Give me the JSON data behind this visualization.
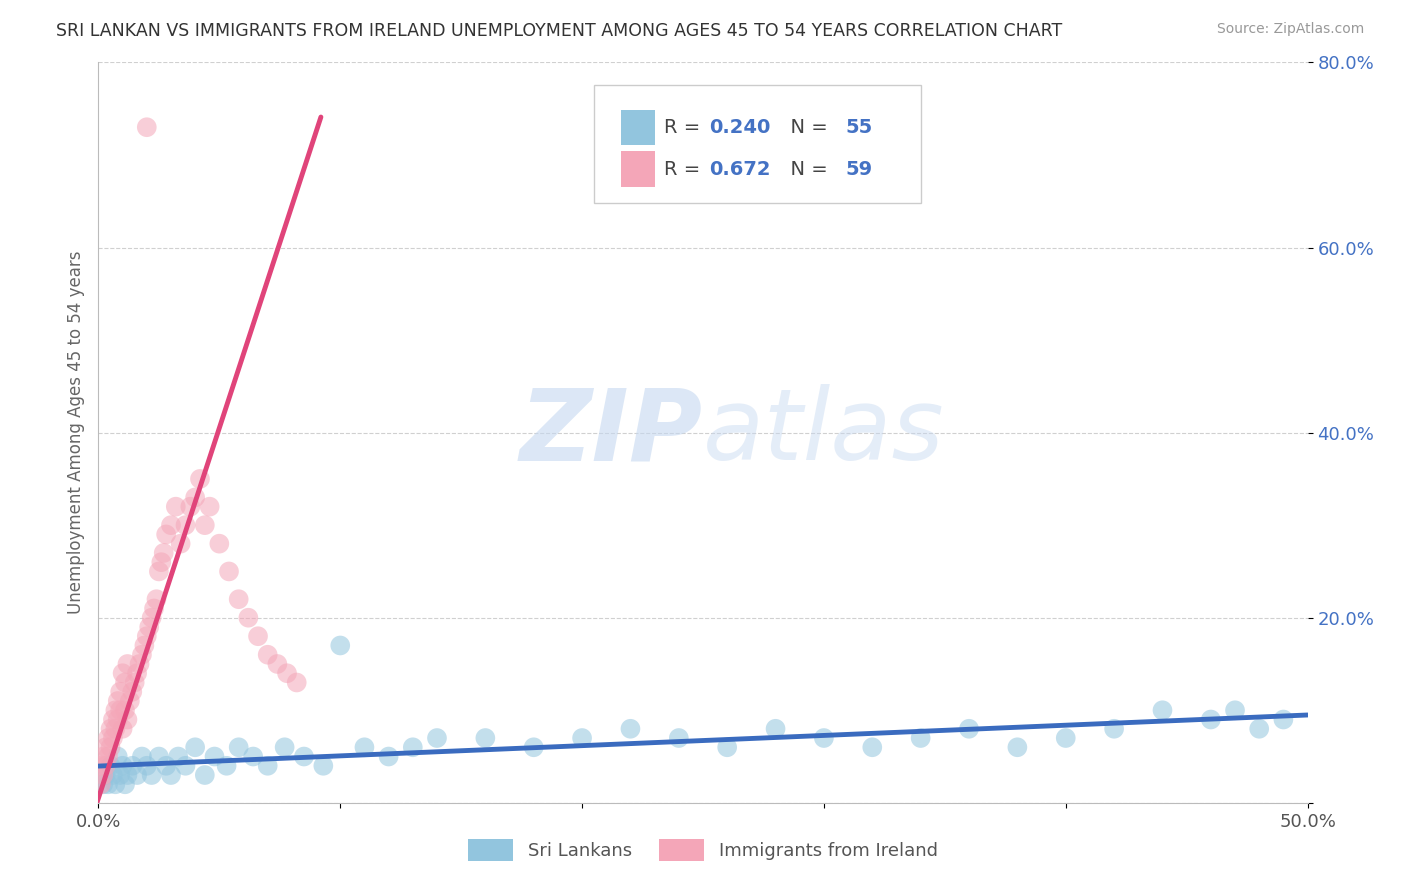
{
  "title": "SRI LANKAN VS IMMIGRANTS FROM IRELAND UNEMPLOYMENT AMONG AGES 45 TO 54 YEARS CORRELATION CHART",
  "source": "Source: ZipAtlas.com",
  "ylabel": "Unemployment Among Ages 45 to 54 years",
  "xlim": [
    0.0,
    0.5
  ],
  "ylim": [
    0.0,
    0.8
  ],
  "legend1_label": "Sri Lankans",
  "legend2_label": "Immigrants from Ireland",
  "legend_R1": "0.240",
  "legend_N1": "55",
  "legend_R2": "0.672",
  "legend_N2": "59",
  "color_blue": "#92c5de",
  "color_pink": "#f4a6b8",
  "color_line_blue": "#3a6bbf",
  "color_line_pink": "#e0447a",
  "watermark_zip": "ZIP",
  "watermark_atlas": "atlas",
  "background_color": "#ffffff",
  "grid_color": "#d0d0d0",
  "sl_x": [
    0.002,
    0.003,
    0.004,
    0.005,
    0.006,
    0.007,
    0.008,
    0.009,
    0.01,
    0.011,
    0.012,
    0.014,
    0.016,
    0.018,
    0.02,
    0.022,
    0.025,
    0.028,
    0.03,
    0.033,
    0.036,
    0.04,
    0.044,
    0.048,
    0.053,
    0.058,
    0.064,
    0.07,
    0.077,
    0.085,
    0.093,
    0.1,
    0.11,
    0.12,
    0.13,
    0.14,
    0.16,
    0.18,
    0.2,
    0.22,
    0.24,
    0.26,
    0.28,
    0.3,
    0.32,
    0.34,
    0.36,
    0.38,
    0.4,
    0.42,
    0.44,
    0.46,
    0.47,
    0.48,
    0.49
  ],
  "sl_y": [
    0.02,
    0.03,
    0.02,
    0.04,
    0.03,
    0.02,
    0.05,
    0.03,
    0.04,
    0.02,
    0.03,
    0.04,
    0.03,
    0.05,
    0.04,
    0.03,
    0.05,
    0.04,
    0.03,
    0.05,
    0.04,
    0.06,
    0.03,
    0.05,
    0.04,
    0.06,
    0.05,
    0.04,
    0.06,
    0.05,
    0.04,
    0.17,
    0.06,
    0.05,
    0.06,
    0.07,
    0.07,
    0.06,
    0.07,
    0.08,
    0.07,
    0.06,
    0.08,
    0.07,
    0.06,
    0.07,
    0.08,
    0.06,
    0.07,
    0.08,
    0.1,
    0.09,
    0.1,
    0.08,
    0.09
  ],
  "irl_x": [
    0.001,
    0.001,
    0.002,
    0.002,
    0.003,
    0.003,
    0.004,
    0.004,
    0.005,
    0.005,
    0.006,
    0.006,
    0.007,
    0.007,
    0.008,
    0.008,
    0.009,
    0.009,
    0.01,
    0.01,
    0.011,
    0.011,
    0.012,
    0.012,
    0.013,
    0.014,
    0.015,
    0.016,
    0.017,
    0.018,
    0.019,
    0.02,
    0.021,
    0.022,
    0.023,
    0.024,
    0.025,
    0.026,
    0.027,
    0.028,
    0.03,
    0.032,
    0.034,
    0.036,
    0.038,
    0.04,
    0.042,
    0.044,
    0.046,
    0.05,
    0.054,
    0.058,
    0.062,
    0.066,
    0.07,
    0.074,
    0.078,
    0.082,
    0.02
  ],
  "irl_y": [
    0.02,
    0.04,
    0.03,
    0.05,
    0.04,
    0.06,
    0.05,
    0.07,
    0.06,
    0.08,
    0.07,
    0.09,
    0.08,
    0.1,
    0.09,
    0.11,
    0.1,
    0.12,
    0.08,
    0.14,
    0.1,
    0.13,
    0.09,
    0.15,
    0.11,
    0.12,
    0.13,
    0.14,
    0.15,
    0.16,
    0.17,
    0.18,
    0.19,
    0.2,
    0.21,
    0.22,
    0.25,
    0.26,
    0.27,
    0.29,
    0.3,
    0.32,
    0.28,
    0.3,
    0.32,
    0.33,
    0.35,
    0.3,
    0.32,
    0.28,
    0.25,
    0.22,
    0.2,
    0.18,
    0.16,
    0.15,
    0.14,
    0.13,
    0.73
  ]
}
